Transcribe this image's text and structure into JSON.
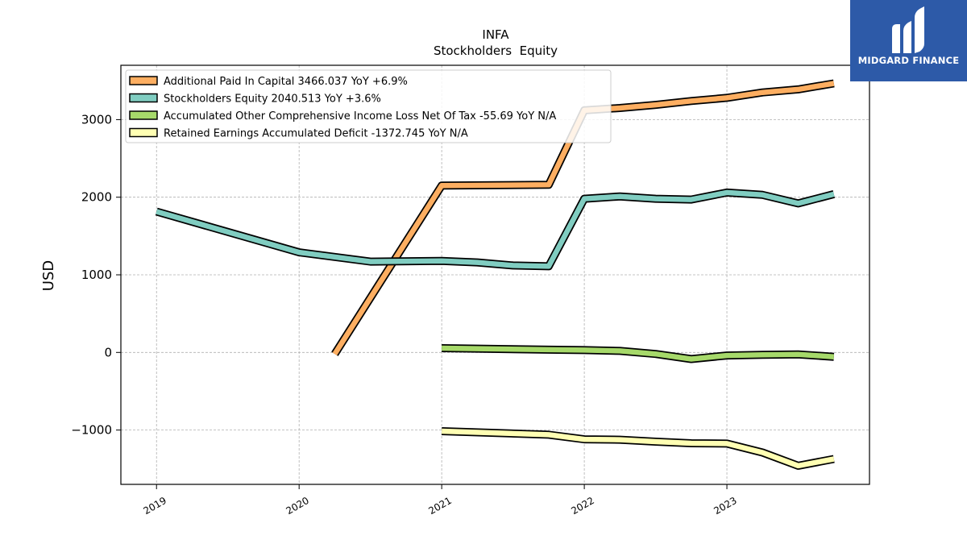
{
  "logo": {
    "text": "MIDGARD FINANCE",
    "color": "#2d5aa8"
  },
  "chart_data": {
    "type": "line",
    "title": "INFA",
    "subtitle": "Stockholders  Equity",
    "xlabel": "",
    "ylabel": "USD",
    "xlim": [
      2018.75,
      2024.0
    ],
    "ylim": [
      -1700,
      3700
    ],
    "x_ticks": [
      2019,
      2020,
      2021,
      2022,
      2023
    ],
    "x_tick_labels": [
      "2019",
      "2020",
      "2021",
      "2022",
      "2023"
    ],
    "y_ticks": [
      -1000,
      0,
      1000,
      2000,
      3000
    ],
    "y_tick_labels": [
      "−1000",
      "0",
      "1000",
      "2000",
      "3000"
    ],
    "grid": true,
    "legend_position": "top-left",
    "series": [
      {
        "name": "Additional Paid In Capital  3466.037 YoY +6.9%",
        "color": "#fdae61",
        "points": [
          [
            2020.25,
            -20
          ],
          [
            2021.0,
            2150
          ],
          [
            2021.75,
            2160
          ],
          [
            2022.0,
            3120
          ],
          [
            2022.25,
            3150
          ],
          [
            2022.5,
            3190
          ],
          [
            2022.75,
            3240
          ],
          [
            2023.0,
            3280
          ],
          [
            2023.25,
            3350
          ],
          [
            2023.5,
            3390
          ],
          [
            2023.75,
            3466
          ]
        ]
      },
      {
        "name": "Stockholders Equity  2040.513 YoY +3.6%",
        "color": "#80cdc1",
        "points": [
          [
            2019.0,
            1815
          ],
          [
            2020.0,
            1290
          ],
          [
            2020.5,
            1170
          ],
          [
            2021.0,
            1180
          ],
          [
            2021.25,
            1160
          ],
          [
            2021.5,
            1120
          ],
          [
            2021.75,
            1110
          ],
          [
            2022.0,
            1980
          ],
          [
            2022.25,
            2010
          ],
          [
            2022.5,
            1980
          ],
          [
            2022.75,
            1970
          ],
          [
            2023.0,
            2060
          ],
          [
            2023.25,
            2030
          ],
          [
            2023.5,
            1920
          ],
          [
            2023.75,
            2040
          ]
        ]
      },
      {
        "name": "Accumulated Other Comprehensive Income Loss Net Of Tax  -55.69 YoY N/A",
        "color": "#a6d96a",
        "points": [
          [
            2021.0,
            55
          ],
          [
            2021.75,
            35
          ],
          [
            2022.0,
            30
          ],
          [
            2022.25,
            20
          ],
          [
            2022.5,
            -20
          ],
          [
            2022.75,
            -85
          ],
          [
            2023.0,
            -40
          ],
          [
            2023.25,
            -30
          ],
          [
            2023.5,
            -25
          ],
          [
            2023.75,
            -56
          ]
        ]
      },
      {
        "name": "Retained Earnings Accumulated Deficit  -1372.745 YoY N/A",
        "color": "#ffffb3",
        "points": [
          [
            2021.0,
            -1015
          ],
          [
            2021.75,
            -1060
          ],
          [
            2022.0,
            -1120
          ],
          [
            2022.25,
            -1125
          ],
          [
            2022.5,
            -1150
          ],
          [
            2022.75,
            -1170
          ],
          [
            2023.0,
            -1175
          ],
          [
            2023.25,
            -1290
          ],
          [
            2023.5,
            -1460
          ],
          [
            2023.75,
            -1373
          ]
        ]
      }
    ]
  }
}
